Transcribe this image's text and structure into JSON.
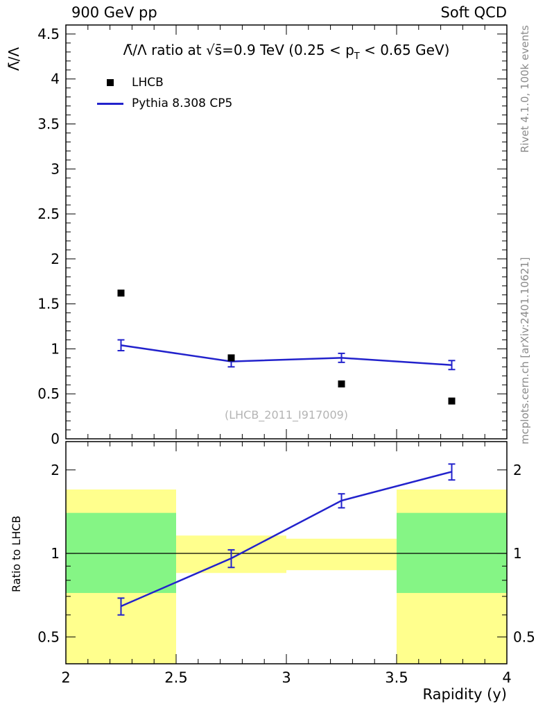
{
  "header": {
    "left": "900 GeV pp",
    "right": "Soft QCD"
  },
  "title_parts": {
    "pre": "Λ̄/Λ ratio at √s̄=0.9 TeV (0.25 < p",
    "sub": "T",
    "post": " < 0.65 GeV)"
  },
  "legend": [
    {
      "label": "LHCB",
      "marker": "square",
      "color": "#000000"
    },
    {
      "label": "Pythia 8.308 CP5",
      "marker": "line",
      "color": "#2222cc"
    }
  ],
  "watermark": "(LHCB_2011_I917009)",
  "side": {
    "top": "Rivet 4.1.0, 100k events",
    "bottom": "mcplots.cern.ch [arXiv:2401.10621]"
  },
  "axis_labels": {
    "main_y": "Λ̄/Λ",
    "ratio_y": "Ratio to LHCB",
    "x": "Rapidity (y)"
  },
  "colors": {
    "mc_line": "#2222cc",
    "data_marker": "#000000",
    "band_outer": "#ffff8d",
    "band_inner": "#85f585",
    "ref_line": "#000000",
    "frame": "#000000",
    "watermark": "#b4b4b4",
    "side_text": "#8a8a8a"
  },
  "chart_data": {
    "type": "line",
    "title": "Λ̄/Λ ratio at √s=0.9 TeV (0.25 < pT < 0.65 GeV)",
    "xlabel": "Rapidity (y)",
    "x": [
      2.25,
      2.75,
      3.25,
      3.75
    ],
    "xlim": [
      2,
      4
    ],
    "xticks": [
      2,
      2.5,
      3,
      3.5,
      4
    ],
    "main": {
      "ylabel": "Λ̄/Λ",
      "ylim": [
        0,
        4.6
      ],
      "yticks": [
        0,
        0.5,
        1,
        1.5,
        2,
        2.5,
        3,
        3.5,
        4,
        4.5
      ],
      "series": [
        {
          "name": "LHCB",
          "style": "marker-square",
          "color": "#000000",
          "values": [
            1.62,
            0.9,
            0.61,
            0.42
          ]
        },
        {
          "name": "Pythia 8.308 CP5",
          "style": "line",
          "color": "#2222cc",
          "values": [
            1.04,
            0.86,
            0.9,
            0.82
          ],
          "errors": [
            0.06,
            0.06,
            0.05,
            0.05
          ]
        }
      ]
    },
    "ratio": {
      "ylabel": "Ratio to LHCB",
      "scale": "log",
      "ylim": [
        0.4,
        2.53
      ],
      "yticks": [
        0.5,
        1,
        2
      ],
      "yticks_minor": [
        0.4,
        0.6,
        0.7,
        0.8,
        0.9
      ],
      "ref_line": 1,
      "values": [
        0.645,
        0.96,
        1.55,
        1.97
      ],
      "errors": [
        0.045,
        0.07,
        0.09,
        0.13
      ],
      "bands": [
        {
          "x0": 2.0,
          "x1": 2.5,
          "inner": [
            0.72,
            1.4
          ],
          "outer": [
            0.35,
            1.7
          ]
        },
        {
          "x0": 2.5,
          "x1": 3.0,
          "inner": null,
          "outer": [
            0.85,
            1.16
          ]
        },
        {
          "x0": 3.0,
          "x1": 3.5,
          "inner": null,
          "outer": [
            0.87,
            1.13
          ]
        },
        {
          "x0": 3.5,
          "x1": 4.0,
          "inner": [
            0.72,
            1.4
          ],
          "outer": [
            0.35,
            1.7
          ]
        }
      ]
    }
  }
}
